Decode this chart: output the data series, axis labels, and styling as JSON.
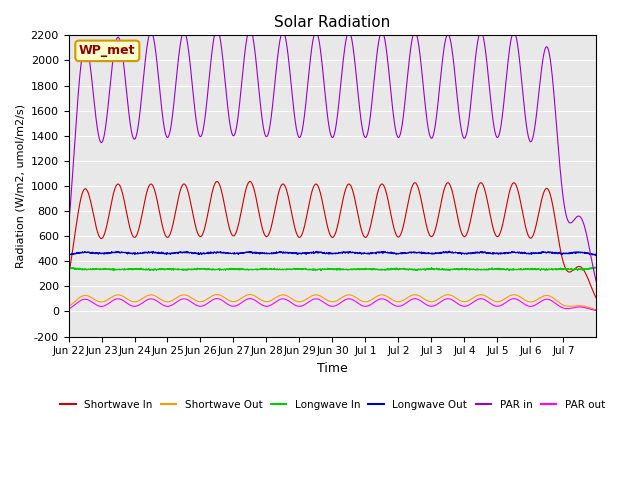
{
  "title": "Solar Radiation",
  "ylabel": "Radiation (W/m2, umol/m2/s)",
  "xlabel": "Time",
  "ylim": [
    -200,
    2200
  ],
  "yticks": [
    -200,
    0,
    200,
    400,
    600,
    800,
    1000,
    1200,
    1400,
    1600,
    1800,
    2000,
    2200
  ],
  "x_labels": [
    "Jun 22",
    "Jun 23",
    "Jun 24",
    "Jun 25",
    "Jun 26",
    "Jun 27",
    "Jun 28",
    "Jun 29",
    "Jun 30",
    "Jul 1",
    "Jul 2",
    "Jul 3",
    "Jul 4",
    "Jul 5",
    "Jul 6",
    "Jul 7"
  ],
  "station_label": "WP_met",
  "background_color": "#e8e8e8",
  "legend": [
    {
      "label": "Shortwave In",
      "color": "#cc0000"
    },
    {
      "label": "Shortwave Out",
      "color": "#ff9900"
    },
    {
      "label": "Longwave In",
      "color": "#00cc00"
    },
    {
      "label": "Longwave Out",
      "color": "#0000cc"
    },
    {
      "label": "PAR in",
      "color": "#9900cc"
    },
    {
      "label": "PAR out",
      "color": "#ff00ff"
    }
  ],
  "n_days": 16,
  "shortwave_in_peak": 1000,
  "shortwave_out_peak": 130,
  "longwave_in_base": 320,
  "longwave_in_range": 80,
  "longwave_out_base": 390,
  "longwave_out_range": 100,
  "par_in_peak": 2100,
  "par_out_peak": 100,
  "sw_mults": [
    0.97,
    1.0,
    1.0,
    1.0,
    1.02,
    1.02,
    1.0,
    1.0,
    1.0,
    1.0,
    1.01,
    1.01,
    1.01,
    1.01,
    0.97,
    0.35
  ],
  "par_mults": [
    1.0,
    1.02,
    1.04,
    1.04,
    1.05,
    1.05,
    1.04,
    1.04,
    1.04,
    1.04,
    1.04,
    1.03,
    1.04,
    1.04,
    0.99,
    0.35
  ]
}
